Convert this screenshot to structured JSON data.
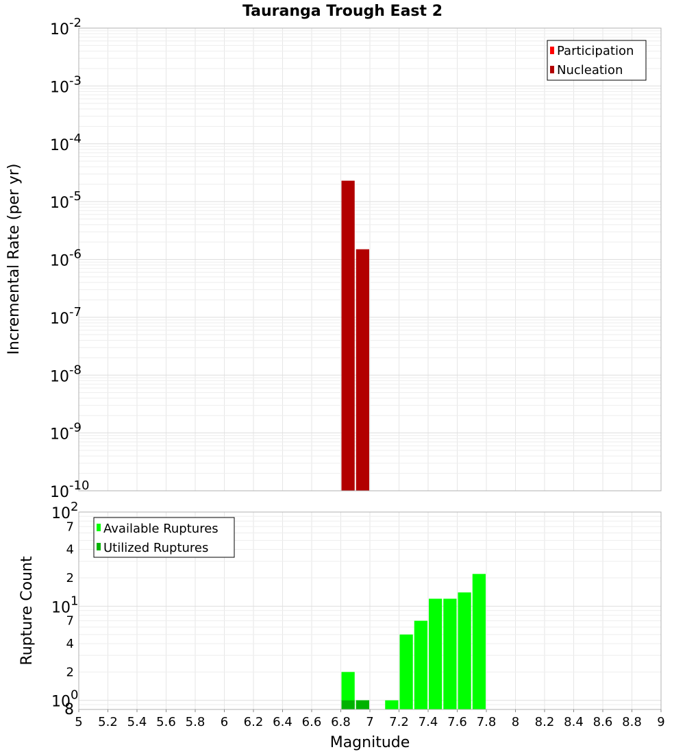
{
  "chart_data": [
    {
      "type": "bar",
      "title": "Tauranga Trough East 2",
      "ylabel": "Incremental Rate (per yr)",
      "xlabel": "",
      "yscale": "log",
      "ylim": [
        1e-10,
        0.01
      ],
      "xlim": [
        5,
        9
      ],
      "bar_width": 0.1,
      "y_ticks": [
        {
          "base": "10",
          "exp": "-2"
        },
        {
          "base": "10",
          "exp": "-3"
        },
        {
          "base": "10",
          "exp": "-4"
        },
        {
          "base": "10",
          "exp": "-5"
        },
        {
          "base": "10",
          "exp": "-6"
        },
        {
          "base": "10",
          "exp": "-7"
        },
        {
          "base": "10",
          "exp": "-8"
        },
        {
          "base": "10",
          "exp": "-9"
        },
        {
          "base": "10",
          "exp": "-10"
        }
      ],
      "legend_position": "top-right",
      "series": [
        {
          "name": "Participation",
          "color": "#ff0000",
          "x": [],
          "values": []
        },
        {
          "name": "Nucleation",
          "color": "#b20000",
          "x": [
            6.85,
            6.95
          ],
          "values": [
            2.3e-05,
            1.5e-06
          ]
        }
      ]
    },
    {
      "type": "bar",
      "title": "",
      "ylabel": "Rupture Count",
      "xlabel": "Magnitude",
      "yscale": "log",
      "ylim": [
        0.8,
        100
      ],
      "xlim": [
        5,
        9
      ],
      "bar_width": 0.1,
      "x_ticks": [
        "5",
        "5.2",
        "5.4",
        "5.6",
        "5.8",
        "6",
        "6.2",
        "6.4",
        "6.6",
        "6.8",
        "7",
        "7.2",
        "7.4",
        "7.6",
        "7.8",
        "8",
        "8.2",
        "8.4",
        "8.6",
        "8.8",
        "9"
      ],
      "y_major_ticks": [
        {
          "base": "10",
          "exp": "2"
        },
        {
          "base": "10",
          "exp": "1"
        },
        {
          "base": "10",
          "exp": "0"
        }
      ],
      "y_minor_ticks": [
        "7",
        "4",
        "2",
        "7",
        "4",
        "2",
        "8"
      ],
      "legend_position": "top-left",
      "series": [
        {
          "name": "Available Ruptures",
          "color": "#00ff00",
          "x": [
            6.85,
            6.95,
            7.15,
            7.25,
            7.35,
            7.45,
            7.55,
            7.65,
            7.75
          ],
          "values": [
            2,
            1,
            1,
            5,
            7,
            12,
            12,
            14,
            22
          ]
        },
        {
          "name": "Utilized Ruptures",
          "color": "#00b200",
          "x": [
            6.85,
            6.95
          ],
          "values": [
            1,
            1
          ]
        }
      ]
    }
  ]
}
